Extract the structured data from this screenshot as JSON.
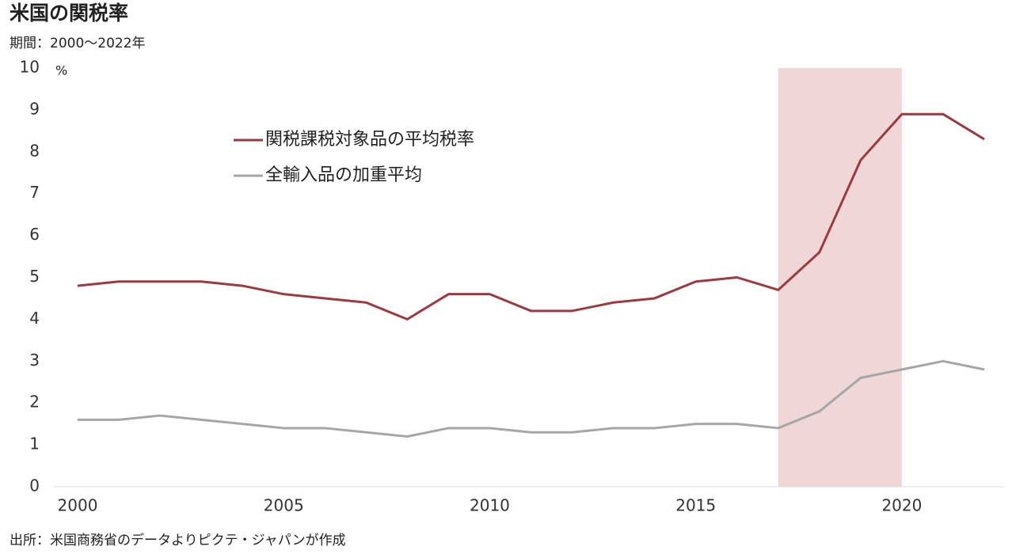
{
  "chart_data": {
    "type": "line",
    "title": "米国の関税率",
    "subtitle": "期間：2000～2022年",
    "source": "出所：米国商務省のデータよりピクテ・ジャパンが作成",
    "y_unit": "%",
    "x": [
      2000,
      2001,
      2002,
      2003,
      2004,
      2005,
      2006,
      2007,
      2008,
      2009,
      2010,
      2011,
      2012,
      2013,
      2014,
      2015,
      2016,
      2017,
      2018,
      2019,
      2020,
      2021,
      2022
    ],
    "series": [
      {
        "name": "関税課税対象品の平均税率",
        "color": "#9b3a40",
        "values": [
          4.8,
          4.9,
          4.9,
          4.9,
          4.8,
          4.6,
          4.5,
          4.4,
          4.0,
          4.6,
          4.6,
          4.2,
          4.2,
          4.4,
          4.5,
          4.9,
          5.0,
          4.7,
          5.6,
          7.8,
          8.9,
          8.9,
          8.3
        ]
      },
      {
        "name": "全輸入品の加重平均",
        "color": "#a6a6a6",
        "values": [
          1.6,
          1.6,
          1.7,
          1.6,
          1.5,
          1.4,
          1.4,
          1.3,
          1.2,
          1.4,
          1.4,
          1.3,
          1.3,
          1.4,
          1.4,
          1.5,
          1.5,
          1.4,
          1.8,
          2.6,
          2.8,
          3.0,
          2.8
        ]
      }
    ],
    "highlight": {
      "x": [
        2017,
        2020
      ],
      "color": "#efd6d7"
    },
    "xlim": [
      2000,
      2022
    ],
    "xticks": [
      2000,
      2005,
      2010,
      2015,
      2020
    ],
    "ylim": [
      0,
      10
    ],
    "yticks": [
      0,
      1,
      2,
      3,
      4,
      5,
      6,
      7,
      8,
      9,
      10
    ],
    "grid": false
  }
}
